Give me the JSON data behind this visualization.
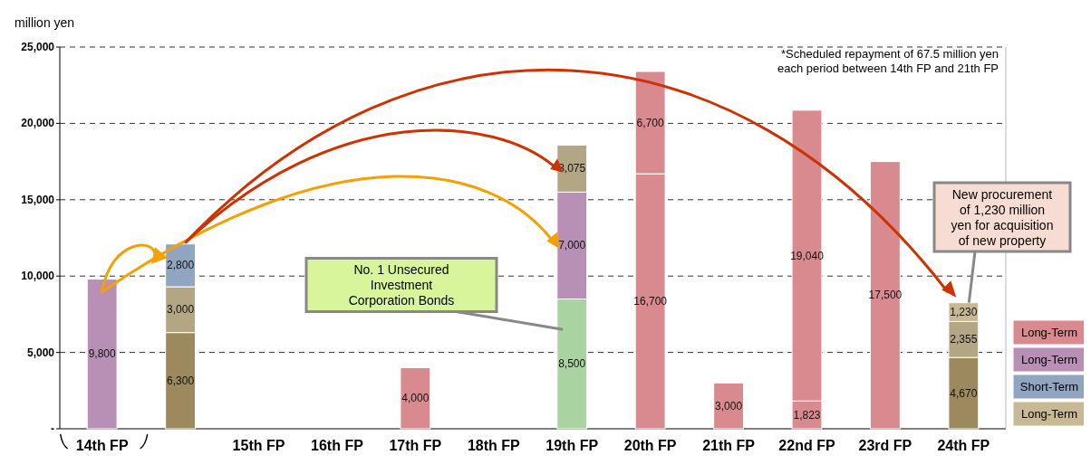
{
  "chart_data": {
    "type": "bar",
    "stacked": true,
    "ylabel": "million yen",
    "categories": [
      "14th FP",
      null,
      "15th FP",
      "16th FP",
      "17th FP",
      "18th FP",
      "19th FP",
      "20th FP",
      "21th FP",
      "22nd FP",
      "23rd FP",
      "24th FP"
    ],
    "series": [
      {
        "name": "Long-Term",
        "color": "#d98a8f",
        "values": [
          null,
          null,
          null,
          null,
          4000,
          null,
          null,
          16700,
          3000,
          1823,
          17500,
          null
        ],
        "value_labels": [
          null,
          null,
          null,
          null,
          "4,000",
          null,
          null,
          "16,700",
          "3,000",
          "1,823",
          "17,500",
          null
        ]
      },
      {
        "color": "#a9d3a0",
        "values": [
          null,
          null,
          null,
          null,
          null,
          null,
          8500,
          null,
          null,
          null,
          null,
          null
        ],
        "value_labels": [
          null,
          null,
          null,
          null,
          null,
          null,
          "8,500",
          null,
          null,
          null,
          null,
          null
        ]
      },
      {
        "color": "#9c8a5e",
        "values": [
          null,
          6300,
          null,
          null,
          null,
          null,
          null,
          null,
          null,
          null,
          null,
          4670
        ],
        "value_labels": [
          null,
          "6,300",
          null,
          null,
          null,
          null,
          null,
          null,
          null,
          null,
          null,
          "4,670"
        ]
      },
      {
        "name": "Long-Term",
        "color": "#b88fb5",
        "values": [
          9800,
          null,
          null,
          null,
          null,
          null,
          7000,
          null,
          null,
          null,
          null,
          null
        ],
        "value_labels": [
          "9,800",
          null,
          null,
          null,
          null,
          null,
          "7,000",
          null,
          null,
          null,
          null,
          null
        ]
      },
      {
        "color": "#b3a684",
        "values": [
          null,
          3000,
          null,
          null,
          null,
          null,
          3075,
          null,
          null,
          null,
          null,
          2355
        ],
        "value_labels": [
          null,
          "3,000",
          null,
          null,
          null,
          null,
          "3,075",
          null,
          null,
          null,
          null,
          "2,355"
        ]
      },
      {
        "color": "#d98a8f",
        "values": [
          null,
          null,
          null,
          null,
          null,
          null,
          null,
          6700,
          null,
          19040,
          null,
          null
        ],
        "value_labels": [
          null,
          null,
          null,
          null,
          null,
          null,
          null,
          "6,700",
          null,
          "19,040",
          null,
          null
        ]
      },
      {
        "name": "Short-Term",
        "color": "#8fa5c0",
        "values": [
          null,
          2800,
          null,
          null,
          null,
          null,
          null,
          null,
          null,
          null,
          null,
          null
        ],
        "value_labels": [
          null,
          "2,800",
          null,
          null,
          null,
          null,
          null,
          null,
          null,
          null,
          null,
          null
        ]
      },
      {
        "name": "Long-Term",
        "color": "#c9b894",
        "values": [
          null,
          null,
          null,
          null,
          null,
          null,
          null,
          null,
          null,
          null,
          null,
          1230
        ],
        "value_labels": [
          null,
          null,
          null,
          null,
          null,
          null,
          null,
          null,
          null,
          null,
          null,
          "1,230"
        ]
      }
    ],
    "ylim": [
      0,
      25000
    ],
    "yticks": [
      {
        "value": 0,
        "label": "-"
      },
      {
        "value": 5000,
        "label": "5,000"
      },
      {
        "value": 10000,
        "label": "10,000"
      },
      {
        "value": 15000,
        "label": "15,000"
      },
      {
        "value": 20000,
        "label": "20,000"
      },
      {
        "value": 25000,
        "label": "25,000"
      }
    ],
    "grid": "y",
    "legend": "bottom right",
    "annotations": [
      "*Scheduled repayment of 67.5 million yen\neach period between 14th FP and 21th FP",
      "No. 1 Unsecured\nInvestment\nCorporation Bonds",
      {
        "text": "New procurement\nof 1,230 million\nyen for acquisition\nof new property",
        "x": "24th FP",
        "y": 8255
      }
    ]
  }
}
